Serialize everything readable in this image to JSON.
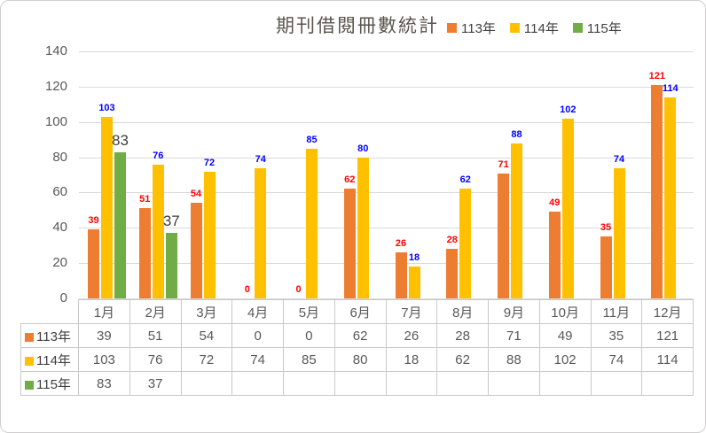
{
  "chart_data": {
    "type": "bar",
    "title": "期刊借閱冊數統計",
    "xlabel": "",
    "ylabel": "",
    "categories": [
      "1月",
      "2月",
      "3月",
      "4月",
      "5月",
      "6月",
      "7月",
      "8月",
      "9月",
      "10月",
      "11月",
      "12月"
    ],
    "series": [
      {
        "name": "113年",
        "color": "#ED7D31",
        "label_color": "#FF0000",
        "label_size": "small",
        "values": [
          39,
          51,
          54,
          0,
          0,
          62,
          26,
          28,
          71,
          49,
          35,
          121
        ]
      },
      {
        "name": "114年",
        "color": "#FFC000",
        "label_color": "#0000FF",
        "label_size": "small",
        "values": [
          103,
          76,
          72,
          74,
          85,
          80,
          18,
          62,
          88,
          102,
          74,
          114
        ]
      },
      {
        "name": "115年",
        "color": "#70AD47",
        "label_color": "#3F3F3F",
        "label_size": "big",
        "values": [
          83,
          37,
          null,
          null,
          null,
          null,
          null,
          null,
          null,
          null,
          null,
          null
        ]
      }
    ],
    "ylim": [
      0,
      140
    ],
    "yticks": [
      0,
      20,
      40,
      60,
      80,
      100,
      120,
      140
    ],
    "grid": true,
    "legend_position": "top-right",
    "data_table": true,
    "style": {
      "axis_text_color": "#595959",
      "gridline_color": "#D9D9D9",
      "table_border_color": "#C9C9C9",
      "table_text_color": "#595959",
      "legend_text_color": "#404040",
      "title_color": "#5B534D",
      "frame_border_color": "#D0CECE",
      "background": "#FFFFFF"
    }
  }
}
